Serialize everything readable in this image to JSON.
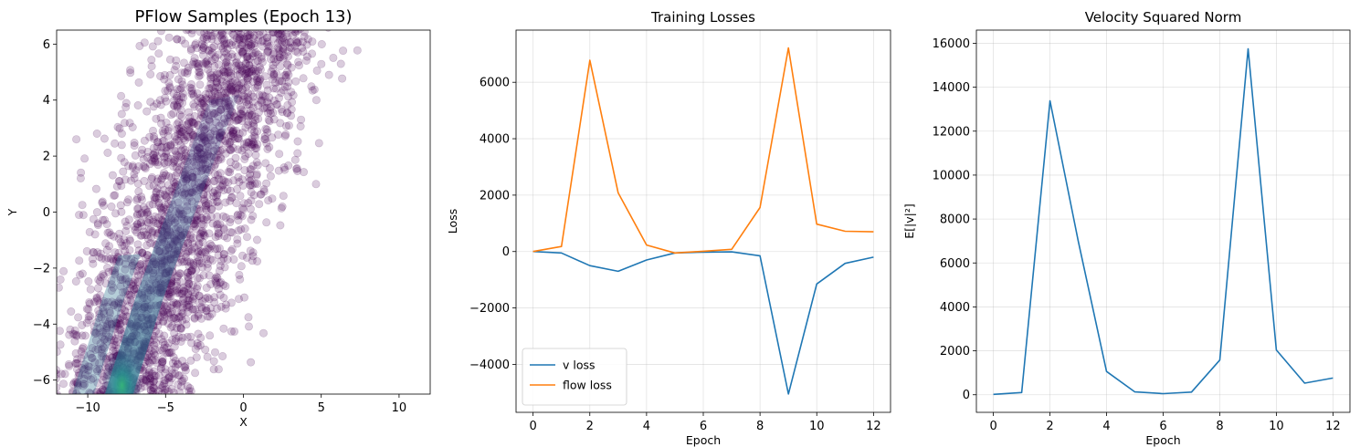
{
  "chart_data": [
    {
      "type": "scatter",
      "title": "PFlow Samples (Epoch 13)",
      "xlabel": "X",
      "ylabel": "Y",
      "xlim": [
        -12,
        12
      ],
      "ylim": [
        -6.5,
        6.5
      ],
      "xticks": [
        -10,
        -5,
        0,
        5,
        10
      ],
      "yticks": [
        -6,
        -4,
        -2,
        0,
        2,
        4,
        6
      ],
      "grid": false,
      "marker_color": "#440154",
      "density_colormap": "viridis",
      "description_of_cloud": {
        "spine_points": [
          [
            -8.0,
            -6.5
          ],
          [
            -6.0,
            -3.0
          ],
          [
            -4.0,
            0.0
          ],
          [
            -2.0,
            3.0
          ],
          [
            0.5,
            6.5
          ]
        ],
        "spread_x": 3.0
      },
      "density_peak": [
        -7.8,
        -6.2
      ]
    },
    {
      "type": "line",
      "title": "Training Losses",
      "xlabel": "Epoch",
      "ylabel": "Loss",
      "x": [
        0,
        1,
        2,
        3,
        4,
        5,
        6,
        7,
        8,
        9,
        10,
        11,
        12
      ],
      "xlim": [
        -0.6,
        12.6
      ],
      "ylim": [
        -5700,
        7850
      ],
      "xticks": [
        0,
        2,
        4,
        6,
        8,
        10,
        12
      ],
      "yticks": [
        -4000,
        -2000,
        0,
        2000,
        4000,
        6000
      ],
      "grid": true,
      "legend_position": "lower-left",
      "series": [
        {
          "name": "v loss",
          "color": "#1f77b4",
          "values": [
            0,
            -50,
            -500,
            -700,
            -300,
            -50,
            -20,
            -10,
            -150,
            -5050,
            -1150,
            -420,
            -200
          ]
        },
        {
          "name": "flow loss",
          "color": "#ff7f0e",
          "values": [
            0,
            180,
            6780,
            2080,
            230,
            -50,
            10,
            80,
            1560,
            7220,
            970,
            720,
            700
          ]
        }
      ]
    },
    {
      "type": "line",
      "title": "Velocity Squared Norm",
      "xlabel": "Epoch",
      "ylabel": "E[|v|²]",
      "x": [
        0,
        1,
        2,
        3,
        4,
        5,
        6,
        7,
        8,
        9,
        10,
        11,
        12
      ],
      "xlim": [
        -0.6,
        12.6
      ],
      "ylim": [
        -800,
        16600
      ],
      "xticks": [
        0,
        2,
        4,
        6,
        8,
        10,
        12
      ],
      "yticks": [
        0,
        2000,
        4000,
        6000,
        8000,
        10000,
        12000,
        14000,
        16000
      ],
      "grid": true,
      "series": [
        {
          "name": "",
          "color": "#1f77b4",
          "values": [
            20,
            100,
            13380,
            7000,
            1060,
            130,
            50,
            120,
            1580,
            15750,
            2040,
            530,
            760
          ]
        }
      ]
    }
  ]
}
